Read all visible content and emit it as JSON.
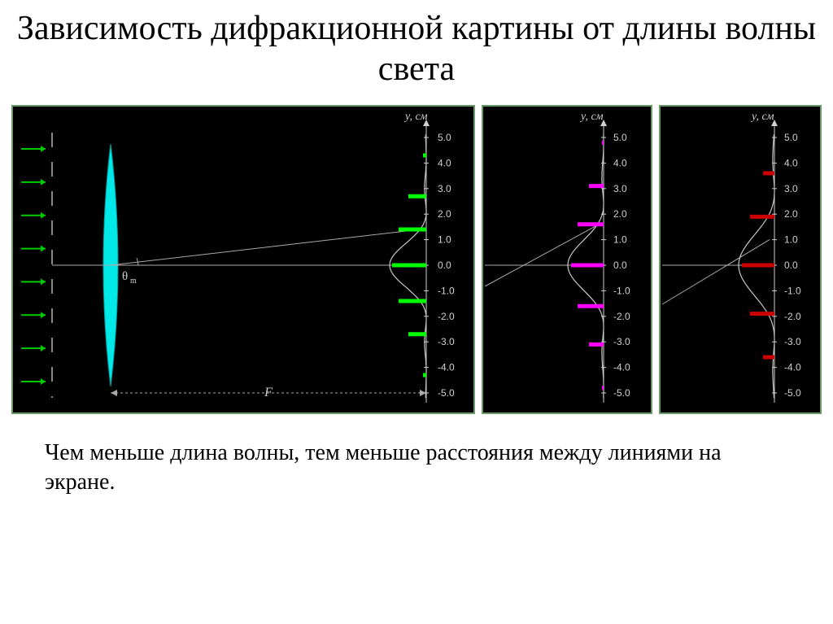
{
  "title": "Зависимость дифракционной картины от длины волны света",
  "caption": "Чем меньше длина волны, тем меньше расстояния между линиями на экране.",
  "colors": {
    "bg": "#ffffff",
    "panel_bg": "#000000",
    "panel_border": "#6a9a6a",
    "text": "#000000",
    "axis_text": "#d0d0d0",
    "curve": "#c8c8c8",
    "grating": "#888888",
    "lens": "#00e8e8",
    "ray": "#aaaaaa",
    "arrow_green": "#00cc00"
  },
  "axis": {
    "label": "y, см",
    "ticks": [
      5.0,
      4.0,
      3.0,
      2.0,
      1.0,
      0.0,
      -1.0,
      -2.0,
      -3.0,
      -4.0,
      -5.0
    ],
    "tick_labels": [
      "5.0",
      "4.0",
      "3.0",
      "2.0",
      "1.0",
      "0.0",
      "-1.0",
      "-2.0",
      "-3.0",
      "-4.0",
      "-5.0"
    ]
  },
  "theta_label": "θ",
  "theta_sub": "m",
  "F_label": "F",
  "panel_main": {
    "fringe_color": "#00ff00",
    "fringes": [
      {
        "y": 4.3,
        "len": 4
      },
      {
        "y": 2.7,
        "len": 22
      },
      {
        "y": 1.4,
        "len": 34
      },
      {
        "y": 0.0,
        "len": 42
      },
      {
        "y": -1.4,
        "len": 34
      },
      {
        "y": -2.7,
        "len": 22
      },
      {
        "y": -4.3,
        "len": 4
      }
    ]
  },
  "panel_mid": {
    "fringe_color": "#ff00ff",
    "fringes": [
      {
        "y": 4.8,
        "len": 2
      },
      {
        "y": 3.1,
        "len": 18
      },
      {
        "y": 1.6,
        "len": 32
      },
      {
        "y": 0.0,
        "len": 40
      },
      {
        "y": -1.6,
        "len": 32
      },
      {
        "y": -3.1,
        "len": 18
      },
      {
        "y": -4.8,
        "len": 2
      }
    ]
  },
  "panel_right": {
    "fringe_color": "#cc0000",
    "fringes": [
      {
        "y": 3.6,
        "len": 14
      },
      {
        "y": 1.9,
        "len": 30
      },
      {
        "y": 0.0,
        "len": 40
      },
      {
        "y": -1.9,
        "len": 30
      },
      {
        "y": -3.6,
        "len": 14
      }
    ]
  }
}
